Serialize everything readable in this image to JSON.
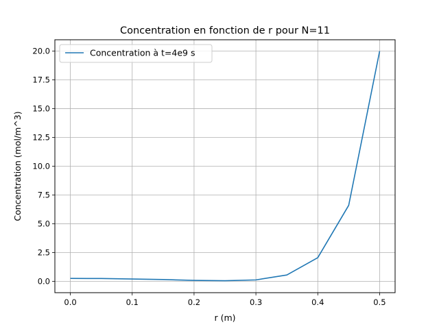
{
  "chart_data": {
    "type": "line",
    "title": "Concentration en fonction de r pour N=11",
    "xlabel": "r (m)",
    "ylabel": "Concentration (mol/m^3)",
    "xlim": [
      -0.025,
      0.525
    ],
    "ylim": [
      -0.99,
      20.99
    ],
    "grid": true,
    "legend_position": "top-left",
    "x_ticks": [
      0.0,
      0.1,
      0.2,
      0.3,
      0.4,
      0.5
    ],
    "x_tick_labels": [
      "0.0",
      "0.1",
      "0.2",
      "0.3",
      "0.4",
      "0.5"
    ],
    "y_ticks": [
      0,
      2.5,
      5,
      7.5,
      10,
      12.5,
      15,
      17.5,
      20
    ],
    "y_tick_labels": [
      "0.0",
      "2.5",
      "5.0",
      "7.5",
      "10.0",
      "12.5",
      "15.0",
      "17.5",
      "20.0"
    ],
    "series": [
      {
        "name": "Concentration à t=4e9 s",
        "color": "#1f77b4",
        "x": [
          0.0,
          0.05,
          0.1,
          0.15,
          0.2,
          0.25,
          0.3,
          0.35,
          0.4,
          0.45,
          0.5
        ],
        "y": [
          0.25,
          0.24,
          0.2,
          0.15,
          0.08,
          0.05,
          0.12,
          0.55,
          2.05,
          6.6,
          20.0
        ]
      }
    ]
  }
}
